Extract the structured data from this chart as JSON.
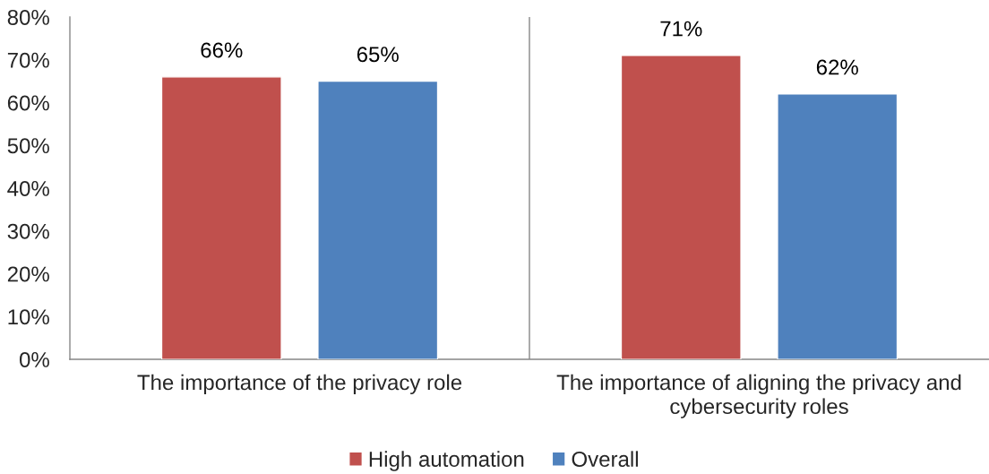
{
  "chart_data": {
    "type": "bar",
    "categories": [
      "The importance of the privacy role",
      "The importance of aligning the privacy and\ncybersecurity roles"
    ],
    "series": [
      {
        "name": "High automation",
        "color": "#c0504d",
        "values": [
          66,
          71
        ],
        "value_labels": [
          "66%",
          "71%"
        ]
      },
      {
        "name": "Overall",
        "color": "#4f81bd",
        "values": [
          65,
          62
        ],
        "value_labels": [
          "65%",
          "62%"
        ]
      }
    ],
    "ylim": [
      0,
      80
    ],
    "yticks": [
      {
        "value": 0,
        "label": "0%"
      },
      {
        "value": 10,
        "label": "10%"
      },
      {
        "value": 20,
        "label": "20%"
      },
      {
        "value": 30,
        "label": "30%"
      },
      {
        "value": 40,
        "label": "40%"
      },
      {
        "value": 50,
        "label": "50%"
      },
      {
        "value": 60,
        "label": "60%"
      },
      {
        "value": 70,
        "label": "70%"
      },
      {
        "value": 80,
        "label": "80%"
      }
    ],
    "grid": "x",
    "legend": "bottom"
  }
}
